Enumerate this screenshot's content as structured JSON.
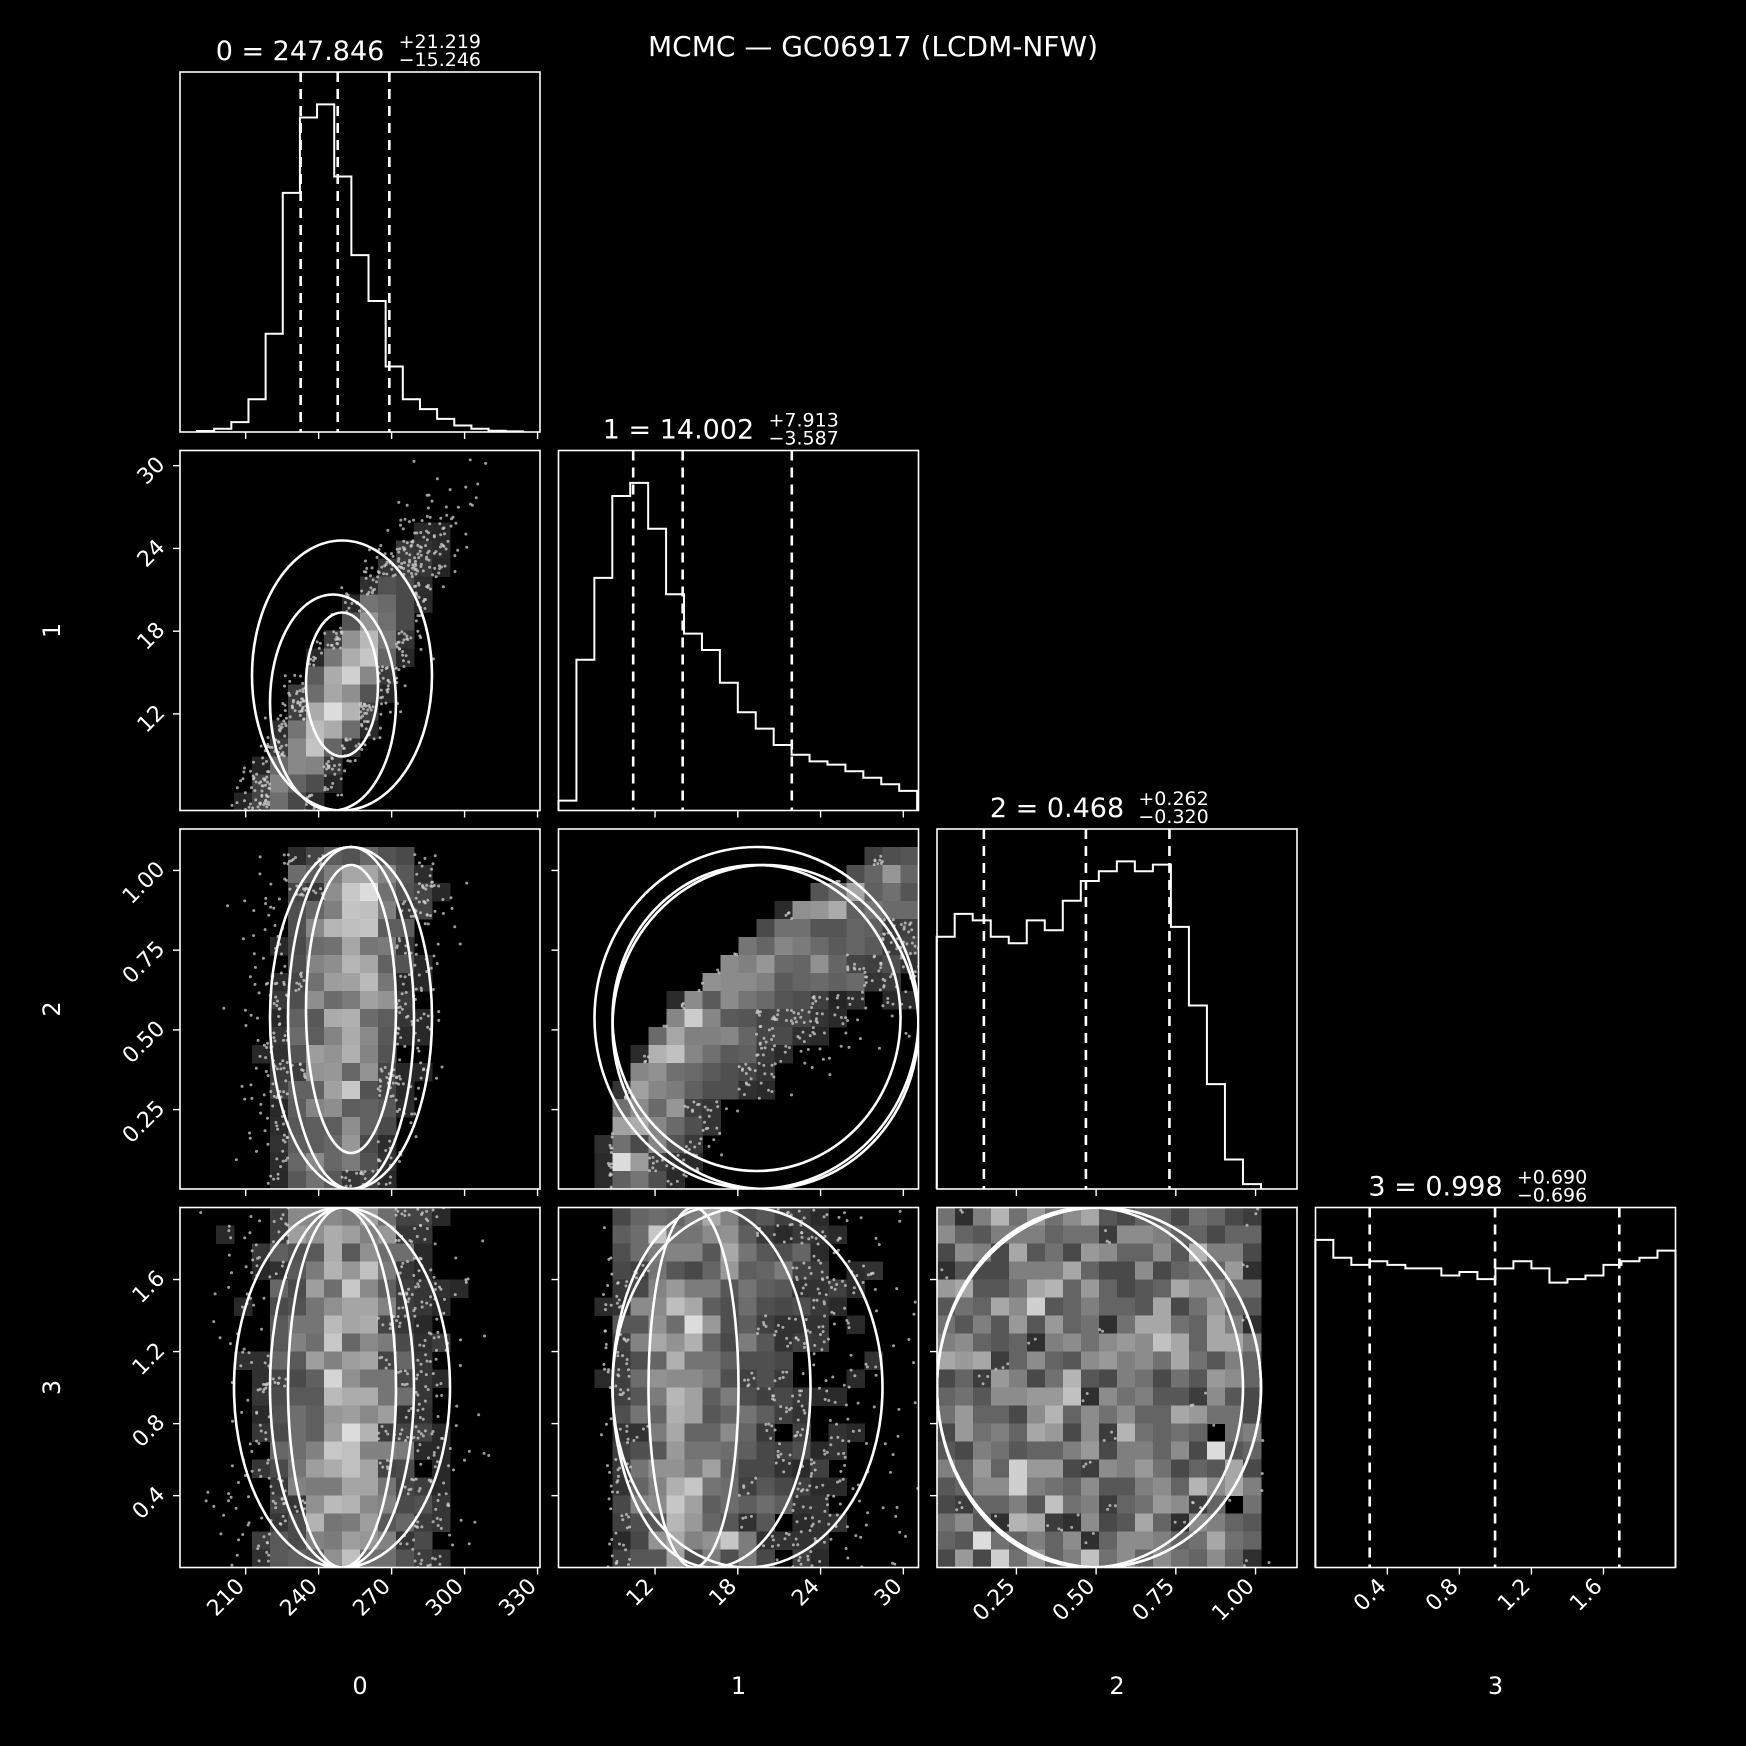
{
  "chart_data": {
    "type": "corner",
    "title": "MCMC — GC06917 (LCDM-NFW)",
    "colors": {
      "background": "#000000",
      "foreground": "#ffffff"
    },
    "parameters": [
      {
        "name": "0",
        "xlabel": "0",
        "range": [
          183,
          331
        ],
        "ticks": [
          210,
          240,
          270,
          300,
          330
        ],
        "tick_labels": [
          "210",
          "240",
          "270",
          "300",
          "330"
        ],
        "median": 247.846,
        "plus": 21.219,
        "minus": 15.246,
        "title_main": "0 = 247.846",
        "title_plus": "+21.219",
        "title_minus": "−15.246",
        "quantiles": [
          232.6,
          247.846,
          269.065
        ],
        "histogram": {
          "edges_start": 190,
          "bin_width": 7.05,
          "heights": [
            0.003,
            0.01,
            0.03,
            0.1,
            0.3,
            0.73,
            0.96,
            1.0,
            0.78,
            0.54,
            0.4,
            0.2,
            0.1,
            0.07,
            0.04,
            0.02,
            0.01,
            0.004,
            0.002
          ]
        }
      },
      {
        "name": "1",
        "xlabel": "1",
        "ylabel": "1",
        "range": [
          5,
          31.1
        ],
        "ticks": [
          12,
          18,
          24,
          30
        ],
        "tick_labels": [
          "12",
          "18",
          "24",
          "30"
        ],
        "median": 14.002,
        "plus": 7.913,
        "minus": 3.587,
        "title_main": "1 = 14.002",
        "title_plus": "+7.913",
        "title_minus": "−3.587",
        "quantiles": [
          10.415,
          14.002,
          21.915
        ],
        "histogram": {
          "edges_start": 5,
          "bin_width": 1.3,
          "heights": [
            0.03,
            0.46,
            0.71,
            0.96,
            1.0,
            0.86,
            0.66,
            0.54,
            0.49,
            0.39,
            0.3,
            0.25,
            0.2,
            0.17,
            0.15,
            0.14,
            0.12,
            0.1,
            0.08,
            0.06
          ]
        }
      },
      {
        "name": "2",
        "xlabel": "2",
        "ylabel": "2",
        "range": [
          0.001,
          1.13
        ],
        "ticks": [
          0.25,
          0.5,
          0.75,
          1.0
        ],
        "tick_labels": [
          "0.25",
          "0.50",
          "0.75",
          "1.00"
        ],
        "median": 0.468,
        "plus": 0.262,
        "minus": 0.32,
        "title_main": "2 = 0.468",
        "title_plus": "+0.262",
        "title_minus": "−0.320",
        "quantiles": [
          0.148,
          0.468,
          0.73
        ],
        "histogram": {
          "edges_start": 0.0,
          "bin_width": 0.0565,
          "heights": [
            0.77,
            0.84,
            0.82,
            0.77,
            0.75,
            0.82,
            0.79,
            0.88,
            0.94,
            0.97,
            1.0,
            0.97,
            0.99,
            0.8,
            0.56,
            0.32,
            0.09,
            0.015
          ]
        }
      },
      {
        "name": "3",
        "xlabel": "3",
        "ylabel": "3",
        "range": [
          0.001,
          2.0
        ],
        "ticks": [
          0.4,
          0.8,
          1.2,
          1.6
        ],
        "tick_labels": [
          "0.4",
          "0.8",
          "1.2",
          "1.6"
        ],
        "median": 0.998,
        "plus": 0.69,
        "minus": 0.696,
        "title_main": "3 = 0.998",
        "title_plus": "+0.690",
        "title_minus": "−0.696",
        "quantiles": [
          0.302,
          0.998,
          1.688
        ],
        "histogram": {
          "edges_start": 0.0,
          "bin_width": 0.1,
          "heights": [
            0.92,
            0.87,
            0.85,
            0.86,
            0.85,
            0.84,
            0.84,
            0.82,
            0.83,
            0.81,
            0.84,
            0.86,
            0.84,
            0.8,
            0.81,
            0.82,
            0.85,
            0.86,
            0.87,
            0.89
          ]
        }
      }
    ],
    "pairs": [
      {
        "x": "0",
        "y": "1",
        "note": "strong positive correlation"
      },
      {
        "x": "0",
        "y": "2",
        "note": "concentration near 0 = 245"
      },
      {
        "x": "1",
        "y": "2",
        "note": "curved banana-shaped relation"
      },
      {
        "x": "0",
        "y": "3",
        "note": "parameter 3 uniform"
      },
      {
        "x": "1",
        "y": "3",
        "note": "parameter 3 uniform"
      },
      {
        "x": "2",
        "y": "3",
        "note": "parameter 3 uniform"
      }
    ]
  }
}
